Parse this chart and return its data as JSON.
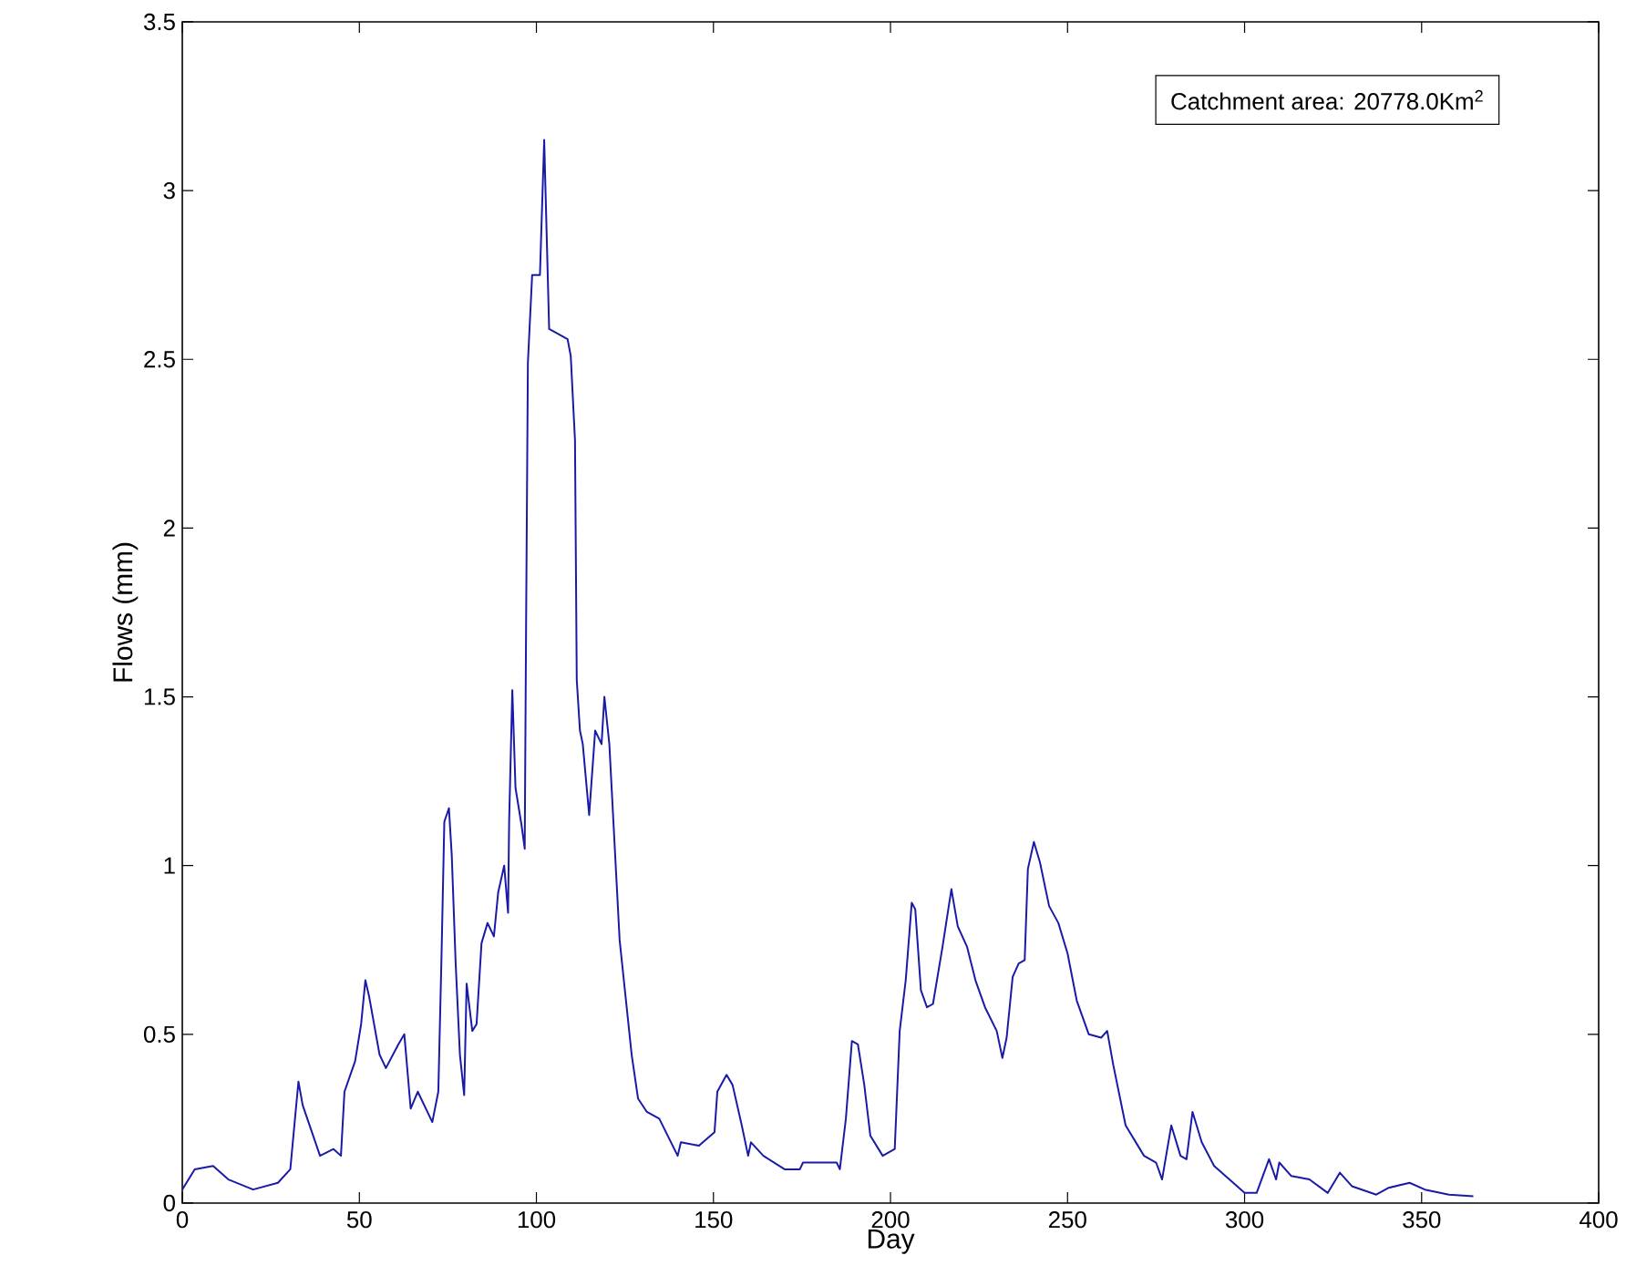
{
  "chart_data": {
    "type": "line",
    "xlabel": "Day",
    "ylabel": "Flows (mm)",
    "annotations": [
      "Catchment area: 20778.0Km$^{2}$"
    ],
    "xlim": [
      0,
      400
    ],
    "ylim": [
      0,
      3.5
    ],
    "xticks": [
      0,
      50,
      100,
      150,
      200,
      250,
      300,
      350,
      400
    ],
    "yticks": [
      0,
      0.5,
      1,
      1.5,
      2,
      2.5,
      3,
      3.5
    ],
    "grid": false,
    "series": [
      {
        "color": "#1a1aa8",
        "x": [
          0,
          3.5,
          8.7,
          13,
          20,
          27,
          30.5,
          32.8,
          34,
          38.9,
          42.7,
          44.8,
          45.8,
          48.8,
          50.5,
          51.7,
          52.8,
          55.7,
          57.5,
          61,
          62.7,
          64.5,
          66.5,
          70.6,
          72.3,
          73.2,
          74,
          75.3,
          76.1,
          77.2,
          78.4,
          79.6,
          80.3,
          81.9,
          83.1,
          84.5,
          86.2,
          88,
          89.2,
          90.9,
          92,
          92.3,
          93.2,
          94.1,
          95.8,
          96.7,
          97.1,
          97.6,
          98.8,
          101,
          102.2,
          102.7,
          103.6,
          108.8,
          109.7,
          110.9,
          111.4,
          112.3,
          113.1,
          114.9,
          116.6,
          118.4,
          119.2,
          120.6,
          121.8,
          123.5,
          125.2,
          126.9,
          128.7,
          131.2,
          134.7,
          139.9,
          140.8,
          145.9,
          150.3,
          151.1,
          153.7,
          155.4,
          158,
          159.8,
          160.6,
          164.1,
          170.1,
          174.4,
          175.3,
          184.8,
          185.7,
          187.4,
          189.1,
          190.8,
          192.6,
          194.3,
          197.8,
          201.2,
          202.6,
          204.3,
          206,
          207,
          208.6,
          210.3,
          212,
          214.7,
          217.2,
          219,
          221.6,
          224,
          226.7,
          230,
          231.6,
          232.8,
          234.5,
          236.2,
          237.9,
          238.8,
          240.5,
          242.2,
          244.8,
          247.4,
          250,
          252.6,
          256,
          259.5,
          261.2,
          262.9,
          266.4,
          271.6,
          275,
          276.7,
          279.3,
          281.9,
          283.6,
          285.3,
          287.9,
          291.4,
          295.7,
          300,
          303.4,
          306.9,
          308.9,
          309.8,
          313.2,
          318.3,
          323.5,
          326.9,
          330.3,
          337.2,
          340.6,
          346.6,
          350.9,
          357.7,
          364.6
        ],
        "values": [
          0.04,
          0.1,
          0.11,
          0.07,
          0.04,
          0.06,
          0.1,
          0.36,
          0.29,
          0.14,
          0.16,
          0.14,
          0.33,
          0.42,
          0.53,
          0.66,
          0.61,
          0.44,
          0.4,
          0.47,
          0.5,
          0.28,
          0.33,
          0.24,
          0.33,
          0.73,
          1.13,
          1.17,
          1.03,
          0.71,
          0.44,
          0.32,
          0.65,
          0.51,
          0.53,
          0.77,
          0.83,
          0.79,
          0.92,
          1.0,
          0.86,
          1.13,
          1.52,
          1.23,
          1.12,
          1.05,
          1.73,
          2.49,
          2.75,
          2.75,
          3.15,
          2.95,
          2.59,
          2.56,
          2.51,
          2.26,
          1.55,
          1.4,
          1.36,
          1.15,
          1.4,
          1.36,
          1.5,
          1.36,
          1.12,
          0.78,
          0.61,
          0.44,
          0.31,
          0.27,
          0.25,
          0.14,
          0.18,
          0.17,
          0.21,
          0.33,
          0.38,
          0.35,
          0.23,
          0.14,
          0.18,
          0.14,
          0.1,
          0.1,
          0.12,
          0.12,
          0.1,
          0.25,
          0.48,
          0.47,
          0.35,
          0.2,
          0.14,
          0.16,
          0.51,
          0.66,
          0.89,
          0.87,
          0.63,
          0.58,
          0.59,
          0.76,
          0.93,
          0.82,
          0.76,
          0.66,
          0.58,
          0.51,
          0.43,
          0.49,
          0.67,
          0.71,
          0.72,
          0.99,
          1.07,
          1.01,
          0.88,
          0.83,
          0.74,
          0.6,
          0.5,
          0.49,
          0.51,
          0.41,
          0.23,
          0.14,
          0.12,
          0.07,
          0.23,
          0.14,
          0.13,
          0.27,
          0.18,
          0.11,
          0.07,
          0.03,
          0.03,
          0.13,
          0.07,
          0.12,
          0.08,
          0.07,
          0.03,
          0.09,
          0.05,
          0.025,
          0.045,
          0.06,
          0.04,
          0.025,
          0.02
        ]
      }
    ]
  }
}
